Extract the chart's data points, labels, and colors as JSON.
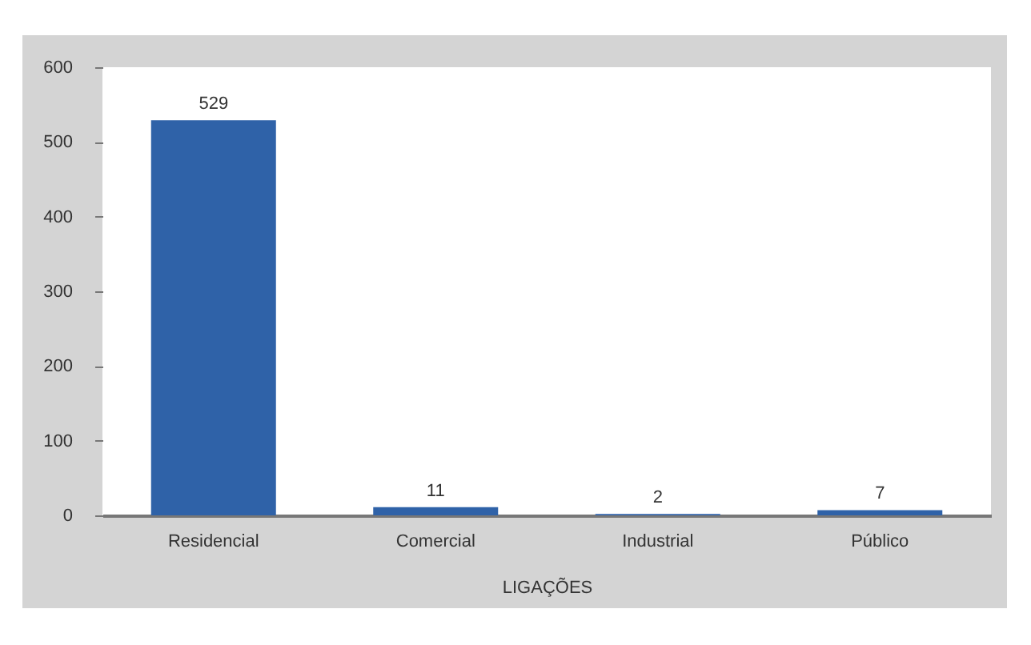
{
  "chart_data": {
    "type": "bar",
    "xlabel": "LIGAÇÕES",
    "categories": [
      "Residencial",
      "Comercial",
      "Industrial",
      "Público"
    ],
    "values": [
      529,
      11,
      2,
      7
    ],
    "color": "#2f62a8",
    "ylim": [
      0,
      600
    ],
    "yticks": [
      0,
      100,
      200,
      300,
      400,
      500,
      600
    ],
    "data_labels": true,
    "grid": false
  }
}
